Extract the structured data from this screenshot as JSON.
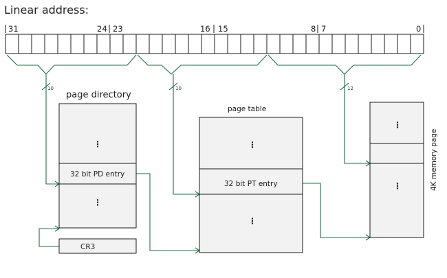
{
  "title": "Linear address:",
  "bit_labels": {
    "b31": "31",
    "b24": "24",
    "b23": "23",
    "b16": "16",
    "b15": "15",
    "b8": "8",
    "b7": "7",
    "b0": "0"
  },
  "field_widths": {
    "directory": "10",
    "table": "10",
    "offset": "12"
  },
  "page_directory": {
    "title": "page directory",
    "entry": "32 bit PD entry",
    "ellipsis": "⋮"
  },
  "page_table": {
    "title": "page table",
    "entry": "32 bit PT entry",
    "ellipsis": "⋮"
  },
  "memory_page": {
    "title": "4K memory page",
    "ellipsis": "⋮"
  },
  "cr3": {
    "label": "CR3"
  },
  "colors": {
    "wire": "#1f6b48",
    "box_fill": "#f2f2f2",
    "outline": "#1a1a1a"
  }
}
